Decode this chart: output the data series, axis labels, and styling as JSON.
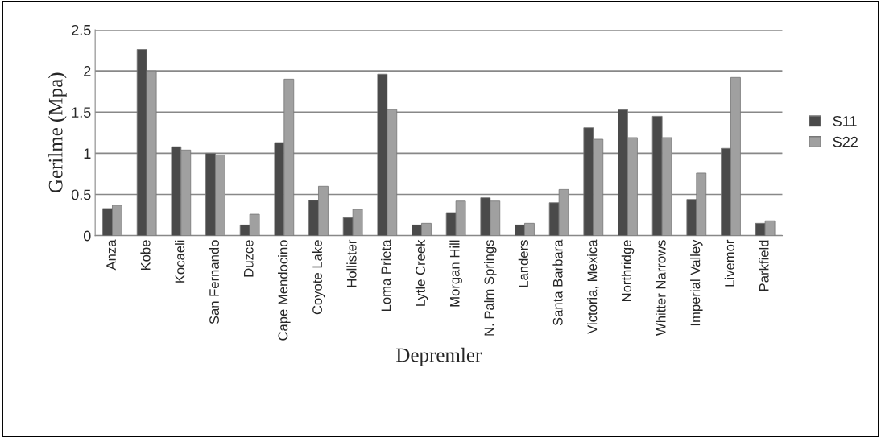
{
  "chart_data": {
    "type": "bar",
    "xlabel": "Depremler",
    "ylabel": "Gerilme (Mpa)",
    "categories": [
      "Anza",
      "Kobe",
      "Kocaeli",
      "San Fernando",
      "Duzce",
      "Cape Mendocino",
      "Coyote Lake",
      "Hollister",
      "Loma Prieta",
      "Lytle Creek",
      "Morgan Hill",
      "N. Palm Springs",
      "Landers",
      "Santa Barbara",
      "Victoria, Mexica",
      "Northridge",
      "Whitter Narrows",
      "Imperial Valley",
      "Livemor",
      "Parkfield"
    ],
    "series": [
      {
        "name": "S11",
        "color": "#4a4a4a",
        "values": [
          0.33,
          2.26,
          1.08,
          1.0,
          0.13,
          1.13,
          0.43,
          0.22,
          1.96,
          0.13,
          0.28,
          0.46,
          0.13,
          0.4,
          1.31,
          1.53,
          1.45,
          0.44,
          1.06,
          0.15
        ]
      },
      {
        "name": "S22",
        "color": "#a0a0a0",
        "values": [
          0.37,
          2.0,
          1.04,
          0.98,
          0.26,
          1.9,
          0.6,
          0.32,
          1.53,
          0.15,
          0.42,
          0.42,
          0.15,
          0.56,
          1.17,
          1.19,
          1.19,
          0.76,
          1.92,
          0.18
        ]
      }
    ],
    "ylim": [
      0,
      2.5
    ],
    "yticks": [
      0,
      0.5,
      1,
      1.5,
      2,
      2.5
    ],
    "grid": "y",
    "legend": "right"
  }
}
